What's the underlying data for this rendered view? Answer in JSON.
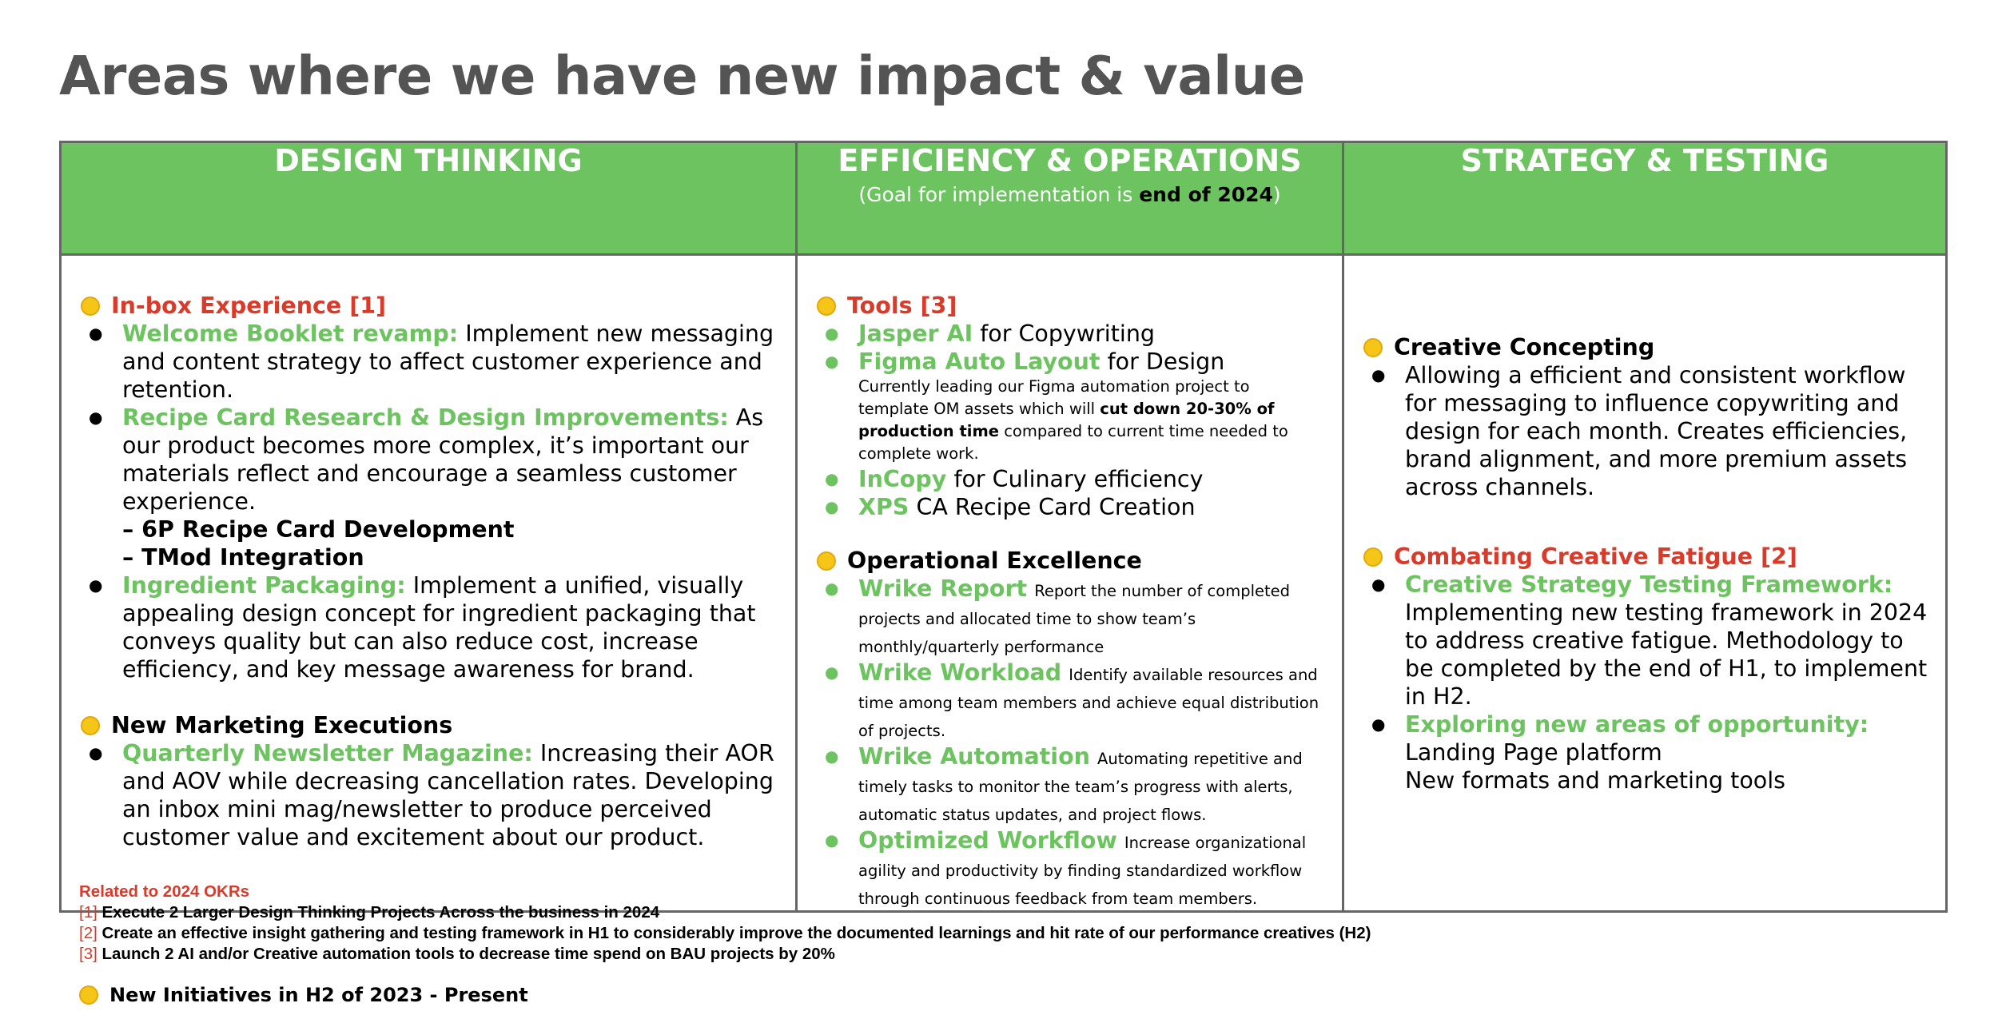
{
  "page": {
    "title": "Areas where we have new impact & value"
  },
  "columns": {
    "design": {
      "header": "DESIGN THINKING",
      "sections": [
        {
          "title": "In-box Experience",
          "ref": "[1]",
          "items": [
            {
              "label": "Welcome Booklet revamp:",
              "text": "Implement new messaging and content strategy to affect customer experience and retention."
            },
            {
              "label": "Recipe Card Research & Design Improvements:",
              "text": "As our product becomes more complex, it’s important our materials reflect and encourage a seamless customer experience.",
              "sublines": [
                "– 6P Recipe Card Development",
                "– TMod Integration"
              ]
            },
            {
              "label": "Ingredient Packaging:",
              "text": "Implement a unified, visually appealing design concept for ingredient packaging that conveys quality but can also reduce cost, increase efficiency, and key message awareness for brand."
            }
          ]
        },
        {
          "title": "New Marketing Executions",
          "items": [
            {
              "label": "Quarterly Newsletter Magazine:",
              "text": "Increasing their AOR and AOV while decreasing cancellation rates. Developing an inbox mini mag/newsletter to produce perceived customer value and excitement about our product."
            }
          ]
        }
      ]
    },
    "efficiency": {
      "header": "EFFICIENCY & OPERATIONS",
      "subheader_prefix": "(Goal for implementation is ",
      "subheader_bold": "end of 2024",
      "subheader_suffix": ")",
      "tools": {
        "title": "Tools",
        "ref": "[3]",
        "items": [
          {
            "label": "Jasper AI",
            "text": "for Copywriting"
          },
          {
            "label": "Figma Auto Layout",
            "text": "for Design",
            "note_pre": "Currently leading our Figma automation project to template OM assets which will ",
            "note_bold": "cut down 20-30% of production time",
            "note_post": " compared to current time needed to complete work."
          },
          {
            "label": "InCopy",
            "text": "for Culinary efficiency"
          },
          {
            "label": "XPS",
            "text": "CA Recipe Card Creation"
          }
        ]
      },
      "operational": {
        "title": "Operational Excellence",
        "items": [
          {
            "label": "Wrike Report",
            "text": "Report the number of completed projects and allocated time to show team’s monthly/quarterly performance"
          },
          {
            "label": "Wrike Workload",
            "text": "Identify available resources and time among team members and achieve equal distribution of projects."
          },
          {
            "label": "Wrike Automation",
            "text": "Automating repetitive and timely tasks to monitor the team’s progress with alerts, automatic status updates, and project flows."
          },
          {
            "label": "Optimized Workflow",
            "text": "Increase organizational agility and productivity by finding standardized workflow through continuous feedback from team members."
          }
        ]
      }
    },
    "strategy": {
      "header": "STRATEGY & TESTING",
      "concepting": {
        "title": "Creative Concepting",
        "items": [
          {
            "text": "Allowing a efficient and consistent workflow for messaging to influence copywriting and design for each month. Creates efficiencies, brand alignment, and more premium assets across channels."
          }
        ]
      },
      "fatigue": {
        "title": "Combating Creative Fatigue",
        "ref": "[2]",
        "items": [
          {
            "label": "Creative Strategy Testing Framework:",
            "text": "Implementing new testing framework in 2024 to address creative fatigue. Methodology to be completed by the end of H1, to implement in H2."
          },
          {
            "label": "Exploring new areas of opportunity:",
            "lines": [
              "Landing Page platform",
              "New formats and marketing tools"
            ]
          }
        ]
      }
    }
  },
  "footer": {
    "okr_title": "Related to 2024 OKRs",
    "okrs": [
      {
        "num": "[1]",
        "text": "Execute 2 Larger Design Thinking Projects Across the business in 2024"
      },
      {
        "num": "[2]",
        "text": "Create an effective insight gathering and testing framework in H1 to considerably improve the documented learnings and hit rate of our performance creatives (H2)"
      },
      {
        "num": "[3]",
        "text": "Launch 2 AI and/or Creative automation tools to decrease time spend on BAU projects by 20%"
      }
    ],
    "initiatives_note": "New Initiatives in H2 of 2023 - Present"
  },
  "colors": {
    "header_green": "#6cc360",
    "accent_red": "#d93b2b",
    "title_gray": "#545454",
    "border": "#666666",
    "bullet_dot": "#f5c518"
  },
  "icons": {
    "section_marker": "yellow-dot-icon"
  }
}
